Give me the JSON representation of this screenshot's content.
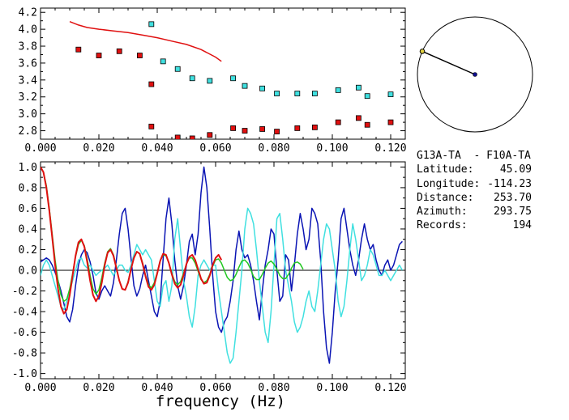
{
  "chart_data": [
    {
      "type": "scatter",
      "title": "",
      "xlabel": "",
      "ylabel": "",
      "xlim": [
        0.0,
        0.125
      ],
      "ylim": [
        2.7,
        4.25
      ],
      "x_ticks": [
        "0.000",
        "0.020",
        "0.040",
        "0.060",
        "0.080",
        "0.100",
        "0.120"
      ],
      "y_ticks": [
        "2.8",
        "3.0",
        "3.2",
        "3.4",
        "3.6",
        "3.8",
        "4.0",
        "4.2"
      ],
      "colors": {
        "red": "#e01010",
        "cyan": "#40e0e0",
        "marker_edge": "#000000"
      },
      "series": [
        {
          "color": "#e01010",
          "marker": "square",
          "points": [
            [
              0.013,
              3.76
            ],
            [
              0.02,
              3.69
            ],
            [
              0.027,
              3.74
            ],
            [
              0.034,
              3.69
            ],
            [
              0.038,
              3.35
            ],
            [
              0.038,
              2.85
            ],
            [
              0.047,
              2.72
            ],
            [
              0.052,
              2.71
            ],
            [
              0.058,
              2.75
            ],
            [
              0.066,
              2.83
            ],
            [
              0.07,
              2.8
            ],
            [
              0.076,
              2.82
            ],
            [
              0.081,
              2.79
            ],
            [
              0.088,
              2.83
            ],
            [
              0.094,
              2.84
            ],
            [
              0.102,
              2.9
            ],
            [
              0.109,
              2.95
            ],
            [
              0.112,
              2.87
            ],
            [
              0.12,
              2.9
            ]
          ]
        },
        {
          "color": "#40e0e0",
          "marker": "square",
          "points": [
            [
              0.038,
              4.06
            ],
            [
              0.042,
              3.62
            ],
            [
              0.047,
              3.53
            ],
            [
              0.052,
              3.42
            ],
            [
              0.058,
              3.39
            ],
            [
              0.066,
              3.42
            ],
            [
              0.07,
              3.33
            ],
            [
              0.076,
              3.3
            ],
            [
              0.081,
              3.24
            ],
            [
              0.088,
              3.24
            ],
            [
              0.094,
              3.24
            ],
            [
              0.102,
              3.28
            ],
            [
              0.109,
              3.31
            ],
            [
              0.112,
              3.21
            ],
            [
              0.12,
              3.23
            ]
          ]
        },
        {
          "color": "#e01010",
          "style": "line",
          "points": [
            [
              0.01,
              4.09
            ],
            [
              0.013,
              4.05
            ],
            [
              0.016,
              4.02
            ],
            [
              0.02,
              4.0
            ],
            [
              0.025,
              3.98
            ],
            [
              0.03,
              3.96
            ],
            [
              0.035,
              3.93
            ],
            [
              0.04,
              3.9
            ],
            [
              0.045,
              3.86
            ],
            [
              0.05,
              3.82
            ],
            [
              0.055,
              3.76
            ],
            [
              0.06,
              3.67
            ],
            [
              0.062,
              3.62
            ]
          ]
        }
      ]
    },
    {
      "type": "line",
      "title": "",
      "xlabel": "frequency (Hz)",
      "ylabel": "",
      "xlim": [
        0.0,
        0.125
      ],
      "ylim": [
        -1.05,
        1.05
      ],
      "x_ticks": [
        "0.000",
        "0.020",
        "0.040",
        "0.060",
        "0.080",
        "0.100",
        "0.120"
      ],
      "y_ticks": [
        "-1.0",
        "-0.8",
        "-0.6",
        "-0.4",
        "-0.2",
        "0.0",
        "0.2",
        "0.4",
        "0.6",
        "0.8",
        "1.0"
      ],
      "zero_line": true,
      "series": [
        {
          "color": "#0a14b4",
          "x_step": 0.001,
          "values": [
            0.08,
            0.1,
            0.12,
            0.1,
            0.05,
            -0.02,
            -0.1,
            -0.2,
            -0.32,
            -0.45,
            -0.5,
            -0.38,
            -0.15,
            0.05,
            0.15,
            0.2,
            0.17,
            0.08,
            -0.05,
            -0.22,
            -0.28,
            -0.2,
            -0.15,
            -0.2,
            -0.25,
            -0.12,
            0.1,
            0.35,
            0.55,
            0.6,
            0.4,
            0.12,
            -0.15,
            -0.25,
            -0.18,
            -0.05,
            0.05,
            -0.1,
            -0.25,
            -0.4,
            -0.45,
            -0.3,
            0.1,
            0.5,
            0.7,
            0.45,
            0.1,
            -0.15,
            -0.28,
            -0.15,
            0.05,
            0.28,
            0.35,
            0.15,
            0.35,
            0.75,
            1.0,
            0.8,
            0.4,
            -0.05,
            -0.4,
            -0.55,
            -0.6,
            -0.5,
            -0.45,
            -0.3,
            -0.1,
            0.2,
            0.38,
            0.2,
            0.12,
            0.15,
            0.05,
            -0.1,
            -0.3,
            -0.48,
            -0.2,
            0.05,
            0.2,
            0.4,
            0.35,
            0.0,
            -0.3,
            -0.25,
            0.15,
            0.1,
            -0.2,
            0.05,
            0.35,
            0.55,
            0.4,
            0.2,
            0.3,
            0.6,
            0.55,
            0.45,
            0.1,
            -0.4,
            -0.75,
            -0.9,
            -0.6,
            -0.2,
            0.1,
            0.5,
            0.6,
            0.4,
            0.2,
            0.05,
            -0.05,
            0.1,
            0.3,
            0.45,
            0.3,
            0.2,
            0.25,
            0.1,
            0.0,
            -0.05,
            0.05,
            0.1,
            0.0,
            0.05,
            0.15,
            0.25,
            0.28
          ]
        },
        {
          "color": "#40e0e0",
          "x_step": 0.001,
          "values": [
            -0.05,
            0.05,
            0.1,
            0.05,
            -0.05,
            -0.15,
            -0.25,
            -0.35,
            -0.38,
            -0.3,
            -0.2,
            -0.1,
            0.0,
            0.1,
            0.12,
            0.05,
            0.02,
            0.05,
            0.0,
            -0.05,
            -0.02,
            0.0,
            0.02,
            0.05,
            0.0,
            -0.05,
            0.0,
            0.05,
            0.05,
            0.0,
            -0.02,
            0.05,
            0.15,
            0.25,
            0.2,
            0.15,
            0.2,
            0.15,
            0.1,
            -0.1,
            -0.3,
            -0.35,
            -0.15,
            -0.1,
            -0.3,
            -0.15,
            0.3,
            0.5,
            0.2,
            -0.1,
            -0.25,
            -0.45,
            -0.55,
            -0.35,
            -0.05,
            0.05,
            0.1,
            0.05,
            0.0,
            0.05,
            0.05,
            -0.2,
            -0.4,
            -0.6,
            -0.8,
            -0.9,
            -0.85,
            -0.6,
            -0.3,
            0.0,
            0.4,
            0.6,
            0.55,
            0.45,
            0.2,
            -0.1,
            -0.35,
            -0.6,
            -0.7,
            -0.4,
            0.05,
            0.5,
            0.55,
            0.3,
            0.0,
            -0.15,
            -0.3,
            -0.5,
            -0.6,
            -0.55,
            -0.45,
            -0.3,
            -0.2,
            -0.35,
            -0.4,
            -0.2,
            0.05,
            0.3,
            0.45,
            0.4,
            0.2,
            0.0,
            -0.3,
            -0.45,
            -0.35,
            -0.1,
            0.2,
            0.45,
            0.3,
            0.1,
            -0.1,
            -0.05,
            0.05,
            0.2,
            0.15,
            0.05,
            -0.05,
            -0.05,
            0.0,
            -0.05,
            -0.1,
            -0.05,
            0.0,
            0.05,
            0.0
          ]
        },
        {
          "color": "#20c820",
          "x_step": 0.001,
          "values": [
            1.0,
            0.95,
            0.82,
            0.6,
            0.35,
            0.1,
            -0.1,
            -0.24,
            -0.3,
            -0.28,
            -0.18,
            -0.03,
            0.13,
            0.25,
            0.29,
            0.24,
            0.11,
            -0.05,
            -0.18,
            -0.23,
            -0.19,
            -0.07,
            0.07,
            0.18,
            0.21,
            0.15,
            0.03,
            -0.1,
            -0.18,
            -0.19,
            -0.11,
            0.01,
            0.12,
            0.18,
            0.16,
            0.07,
            -0.05,
            -0.14,
            -0.17,
            -0.12,
            -0.02,
            0.09,
            0.15,
            0.14,
            0.07,
            -0.03,
            -0.11,
            -0.14,
            -0.11,
            -0.03,
            0.06,
            0.12,
            0.12,
            0.07,
            -0.01,
            -0.09,
            -0.12,
            -0.1,
            -0.04,
            0.04,
            0.1,
            0.11,
            0.07,
            0.0,
            -0.07,
            -0.1,
            -0.09,
            -0.04,
            0.03,
            0.09,
            0.1,
            0.07,
            0.01,
            -0.06,
            -0.09,
            -0.09,
            -0.04,
            0.02,
            0.07,
            0.09,
            0.06,
            0.01,
            -0.05,
            -0.08,
            -0.08,
            -0.04,
            0.02,
            0.07,
            0.08,
            0.06,
            0.01
          ]
        },
        {
          "color": "#e01010",
          "x_step": 0.001,
          "values": [
            1.0,
            0.95,
            0.8,
            0.58,
            0.32,
            0.05,
            -0.18,
            -0.35,
            -0.42,
            -0.38,
            -0.24,
            -0.05,
            0.14,
            0.27,
            0.3,
            0.23,
            0.08,
            -0.1,
            -0.24,
            -0.3,
            -0.25,
            -0.12,
            0.05,
            0.17,
            0.2,
            0.14,
            0.02,
            -0.1,
            -0.18,
            -0.19,
            -0.12,
            0.01,
            0.12,
            0.18,
            0.16,
            0.06,
            -0.06,
            -0.16,
            -0.19,
            -0.14,
            -0.03,
            0.09,
            0.16,
            0.15,
            0.07,
            -0.04,
            -0.13,
            -0.17,
            -0.14,
            -0.05,
            0.06,
            0.13,
            0.15,
            0.1,
            0.01,
            -0.08,
            -0.13,
            -0.12,
            -0.05,
            0.05,
            0.12,
            0.15,
            0.1
          ]
        }
      ]
    }
  ],
  "inset": {
    "type": "polar",
    "azimuth_deg": 293.75,
    "colors": {
      "circle": "#000000",
      "path": "#000000",
      "source": "#e0d040",
      "station": "#101090"
    }
  },
  "info": {
    "title": "G13A-TA  - F10A-TA",
    "rows": [
      {
        "label": "Latitude:",
        "value": "45.09"
      },
      {
        "label": "Longitude:",
        "value": "-114.23"
      },
      {
        "label": "Distance:",
        "value": "253.70"
      },
      {
        "label": "Azimuth:",
        "value": "293.75"
      },
      {
        "label": "Records:",
        "value": "194"
      }
    ]
  }
}
